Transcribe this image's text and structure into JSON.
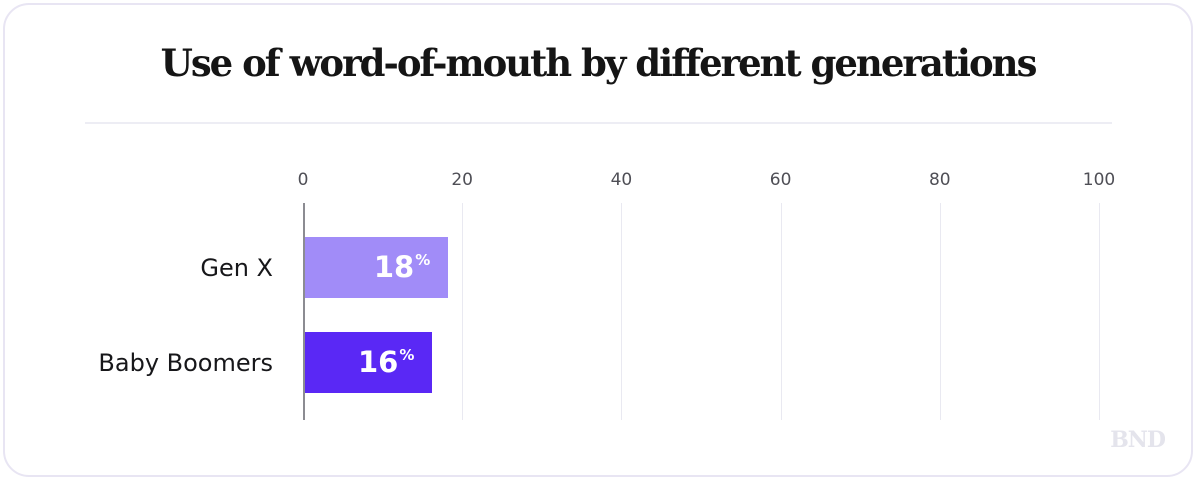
{
  "title": "Use of word-of-mouth by different generations",
  "watermark": "BND",
  "chart_data": {
    "type": "bar",
    "orientation": "horizontal",
    "title": "Use of word-of-mouth by different generations",
    "categories": [
      "Gen X",
      "Baby Boomers"
    ],
    "values": [
      18,
      16
    ],
    "unit": "%",
    "value_labels": [
      "18%",
      "16%"
    ],
    "xticks": [
      0,
      20,
      40,
      60,
      80,
      100
    ],
    "xlim": [
      0,
      100
    ],
    "xlabel": "",
    "ylabel": "",
    "grid": "vertical-gridlines",
    "legend": "none",
    "tick_position": "top",
    "bar_colors": [
      "#a18cf8",
      "#5a28f5"
    ],
    "colors": {
      "axis_line": "#8c8c92",
      "gridline": "#e9e9f1",
      "tick_label": "#4f4f56",
      "category_label": "#17171a",
      "value_label": "#ffffff",
      "card_border": "#e8e5f3",
      "divider": "#ededf4",
      "title_text": "#151515",
      "watermark": "#e4e4ec",
      "background": "#ffffff"
    }
  }
}
